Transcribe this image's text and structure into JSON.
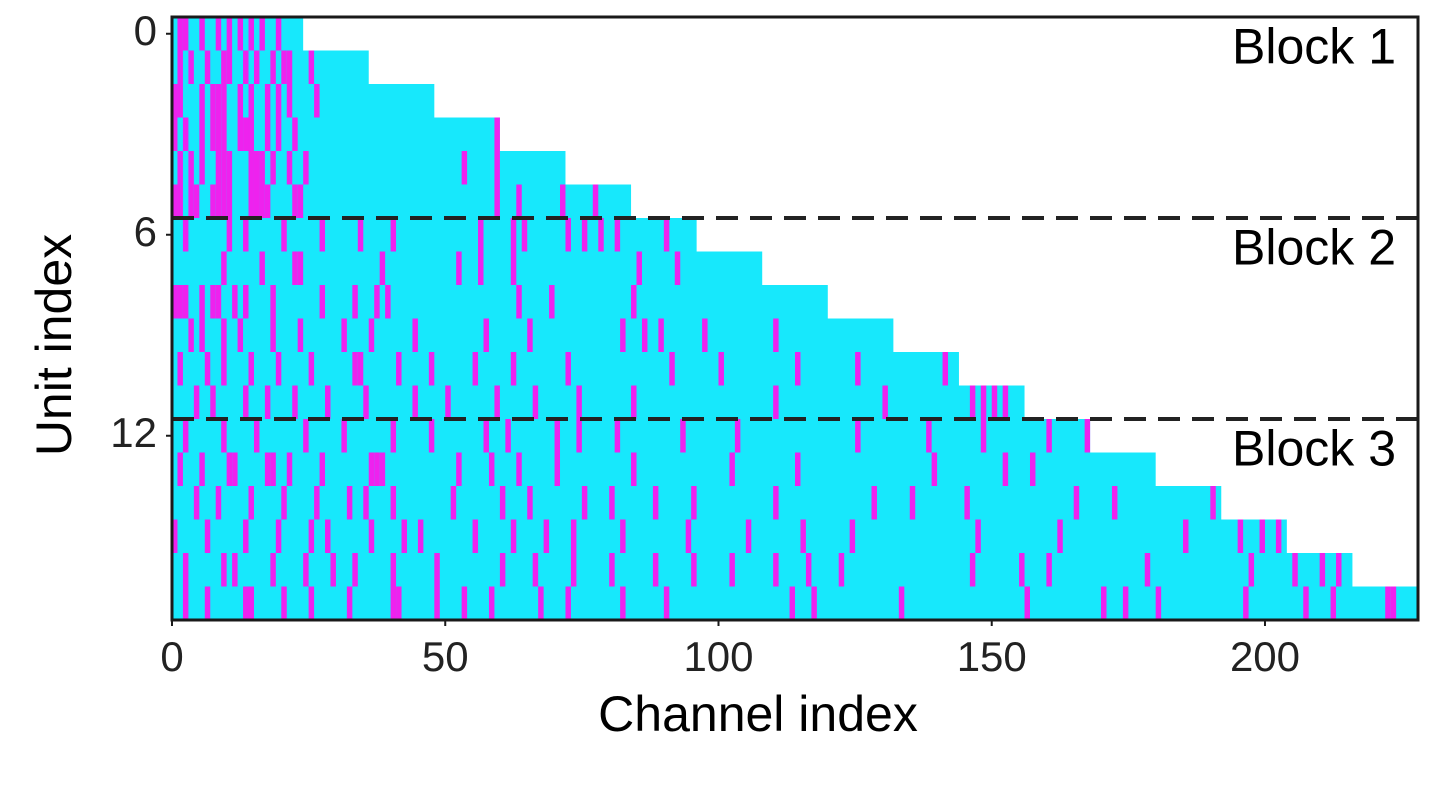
{
  "chart_data": {
    "type": "heatmap",
    "xlabel": "Channel index",
    "ylabel": "Unit index",
    "xlim": [
      0,
      228
    ],
    "ylim": [
      -0.5,
      17.5
    ],
    "xticks": [
      0,
      50,
      100,
      150,
      200
    ],
    "yticks": [
      0,
      6,
      12
    ],
    "base_color": "#17e8fc",
    "highlight_color": "#ee22ee",
    "hlines": [
      5.5,
      11.5
    ],
    "annotations": [
      {
        "text": "Block 1",
        "y": 0.5
      },
      {
        "text": "Block 2",
        "y": 6.5
      },
      {
        "text": "Block 3",
        "y": 12.5
      }
    ],
    "rows": [
      {
        "length": 24,
        "magenta": [
          1,
          2,
          5,
          8,
          10,
          12,
          14,
          16,
          19
        ]
      },
      {
        "length": 36,
        "magenta": [
          1,
          3,
          6,
          9,
          10,
          13,
          15,
          18,
          20,
          21,
          25
        ]
      },
      {
        "length": 48,
        "magenta": [
          0,
          1,
          5,
          7,
          8,
          9,
          12,
          14,
          17,
          19,
          21,
          26
        ]
      },
      {
        "length": 60,
        "magenta": [
          0,
          2,
          5,
          7,
          8,
          9,
          12,
          13,
          14,
          17,
          19,
          22,
          59
        ]
      },
      {
        "length": 72,
        "magenta": [
          1,
          3,
          5,
          8,
          9,
          10,
          14,
          15,
          16,
          18,
          21,
          24,
          53,
          59
        ]
      },
      {
        "length": 84,
        "magenta": [
          0,
          1,
          3,
          4,
          7,
          8,
          9,
          10,
          14,
          15,
          16,
          17,
          22,
          23,
          59,
          63,
          71,
          77
        ]
      },
      {
        "length": 96,
        "magenta": [
          2,
          10,
          13,
          20,
          27,
          34,
          40,
          56,
          62,
          64,
          72,
          75,
          78,
          81,
          90
        ]
      },
      {
        "length": 108,
        "magenta": [
          9,
          16,
          22,
          23,
          38,
          52,
          56,
          62,
          85,
          92
        ]
      },
      {
        "length": 120,
        "magenta": [
          0,
          1,
          2,
          5,
          7,
          8,
          11,
          13,
          18,
          27,
          33,
          37,
          39,
          63,
          69,
          84
        ]
      },
      {
        "length": 132,
        "magenta": [
          3,
          5,
          9,
          12,
          18,
          23,
          31,
          36,
          44,
          57,
          65,
          82,
          86,
          89,
          97,
          110
        ]
      },
      {
        "length": 144,
        "magenta": [
          1,
          6,
          9,
          14,
          19,
          25,
          33,
          34,
          41,
          47,
          55,
          62,
          72,
          91,
          100,
          114,
          125,
          141
        ]
      },
      {
        "length": 156,
        "magenta": [
          4,
          7,
          13,
          17,
          22,
          28,
          35,
          44,
          50,
          59,
          66,
          74,
          84,
          110,
          130,
          146,
          148,
          150,
          152
        ]
      },
      {
        "length": 168,
        "magenta": [
          2,
          9,
          15,
          24,
          31,
          40,
          47,
          57,
          61,
          70,
          74,
          81,
          93,
          103,
          125,
          138,
          148,
          160,
          167
        ]
      },
      {
        "length": 180,
        "magenta": [
          1,
          5,
          10,
          11,
          17,
          18,
          21,
          27,
          36,
          37,
          38,
          52,
          58,
          63,
          70,
          84,
          102,
          114,
          139,
          152,
          157
        ]
      },
      {
        "length": 192,
        "magenta": [
          4,
          8,
          14,
          20,
          26,
          32,
          35,
          40,
          51,
          60,
          65,
          75,
          80,
          88,
          95,
          110,
          128,
          135,
          145,
          165,
          172,
          190
        ]
      },
      {
        "length": 204,
        "magenta": [
          0,
          6,
          13,
          19,
          25,
          28,
          36,
          42,
          45,
          55,
          62,
          68,
          73,
          82,
          94,
          105,
          115,
          124,
          147,
          162,
          185,
          195,
          199,
          202
        ]
      },
      {
        "length": 216,
        "magenta": [
          2,
          9,
          11,
          18,
          24,
          29,
          33,
          40,
          48,
          60,
          66,
          73,
          80,
          88,
          95,
          102,
          110,
          116,
          122,
          146,
          155,
          160,
          178,
          197,
          205,
          210,
          213
        ]
      },
      {
        "length": 228,
        "magenta": [
          2,
          6,
          13,
          14,
          20,
          25,
          32,
          40,
          41,
          48,
          53,
          58,
          67,
          72,
          82,
          90,
          113,
          117,
          133,
          156,
          170,
          174,
          180,
          196,
          207,
          212,
          222,
          223
        ]
      }
    ]
  }
}
